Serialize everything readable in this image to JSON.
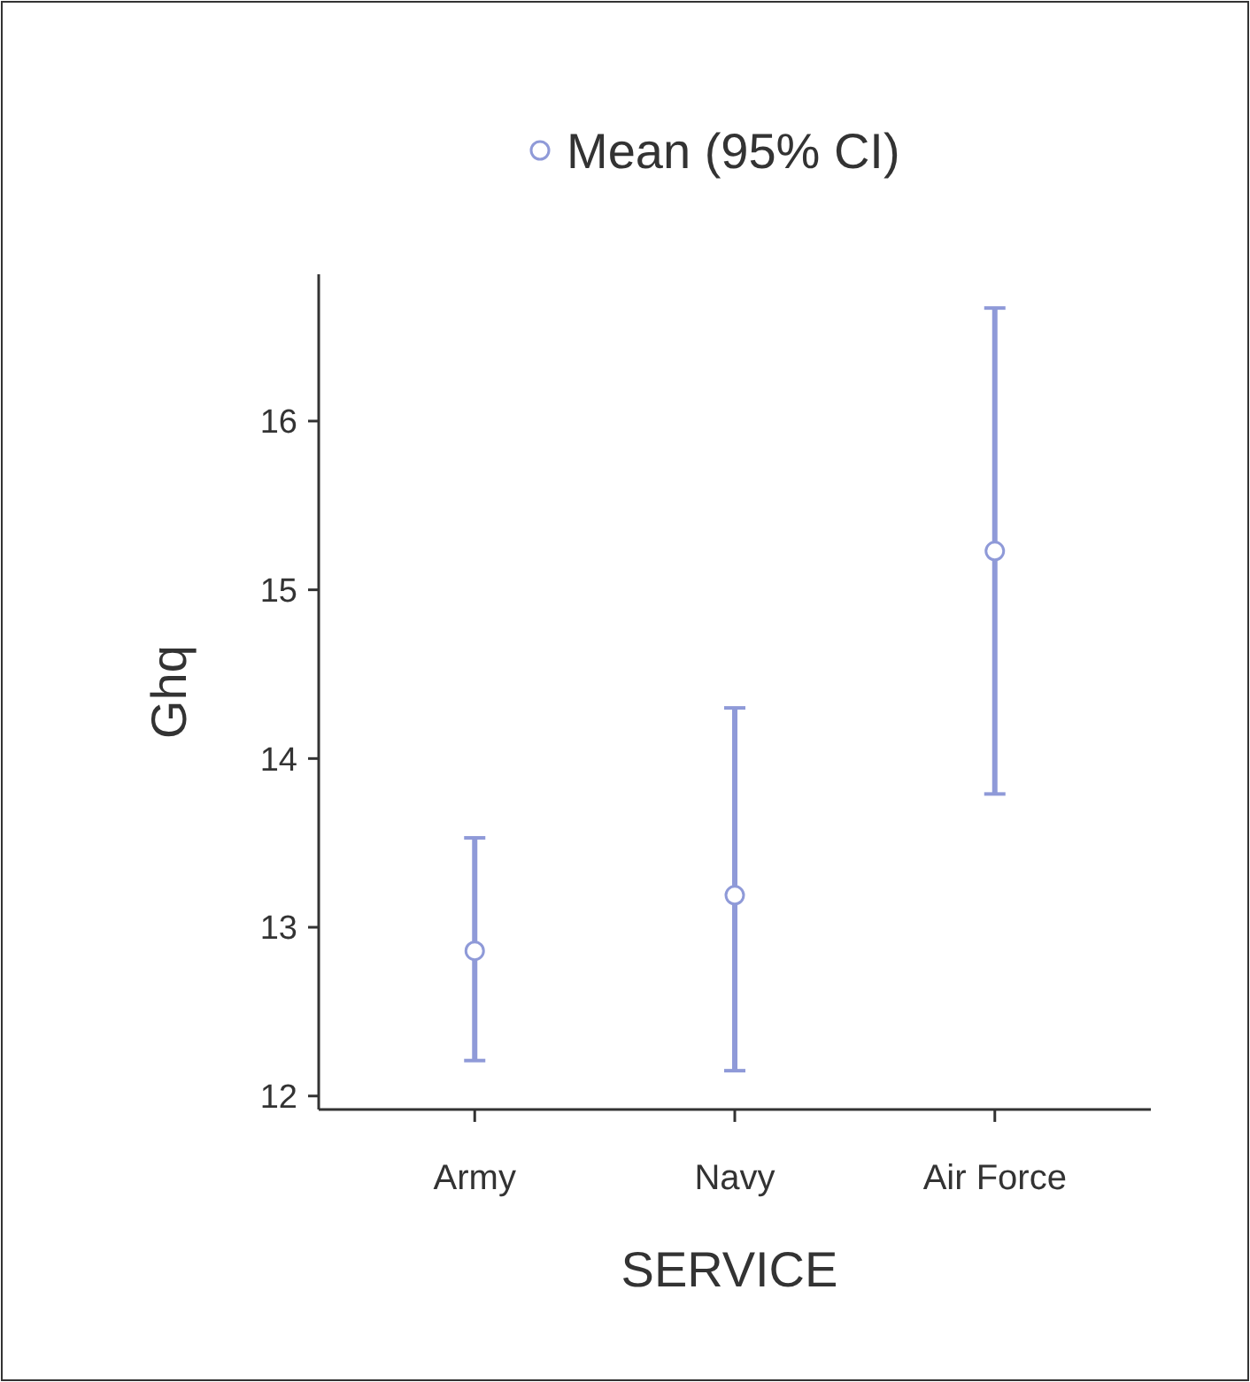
{
  "chart_data": {
    "type": "scatter",
    "xlabel": "SERVICE",
    "ylabel": "Ghq",
    "categories": [
      "Army",
      "Navy",
      "Air Force"
    ],
    "series": [
      {
        "name": "Mean (95% CI)",
        "color": "#8f9ad8",
        "values": [
          12.86,
          13.19,
          15.23
        ],
        "errors": [
          [
            12.21,
            13.53
          ],
          [
            12.15,
            14.3
          ],
          [
            13.79,
            16.67
          ]
        ]
      }
    ],
    "ylim": [
      11.92,
      16.87
    ],
    "yticks": [
      12,
      13,
      14,
      15,
      16
    ],
    "marker": "circle",
    "legend": "top",
    "grid": false
  }
}
